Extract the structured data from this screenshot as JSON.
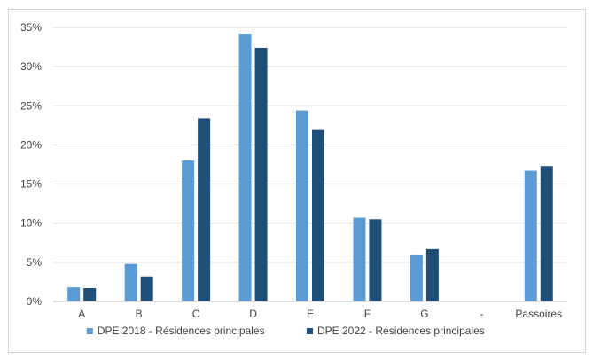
{
  "chart_data": {
    "type": "bar",
    "categories": [
      "A",
      "B",
      "C",
      "D",
      "E",
      "F",
      "G",
      "-",
      "Passoires"
    ],
    "series": [
      {
        "name": "DPE 2018 - Résidences principales",
        "color": "#5b9bd5",
        "values": [
          1.8,
          4.8,
          18.0,
          34.2,
          24.4,
          10.7,
          5.9,
          null,
          16.7
        ]
      },
      {
        "name": "DPE 2022 - Résidences principales",
        "color": "#1f4e79",
        "values": [
          1.7,
          3.2,
          23.4,
          32.4,
          21.9,
          10.5,
          6.7,
          null,
          17.3
        ]
      }
    ],
    "y_ticks": [
      "0%",
      "5%",
      "10%",
      "15%",
      "20%",
      "25%",
      "30%",
      "35%"
    ],
    "ylim": [
      0,
      35
    ],
    "grid": true,
    "legend_position": "bottom"
  }
}
